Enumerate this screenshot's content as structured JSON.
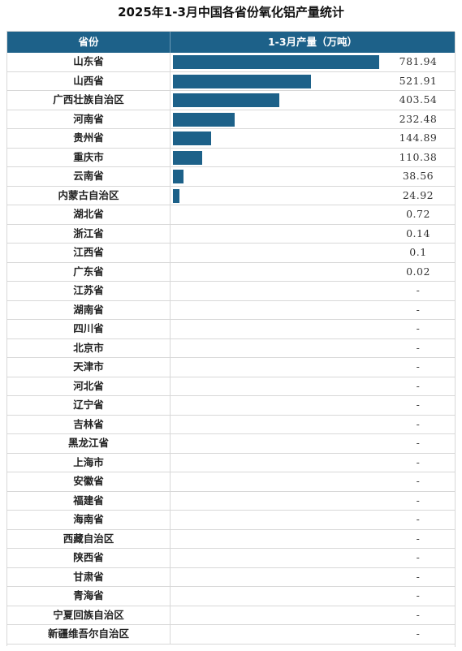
{
  "title": "2025年1-3月中国各省份氧化铝产量统计",
  "header": {
    "col1": "省份",
    "col2": "1-3月产量（万吨）"
  },
  "colors": {
    "bar": "#1d6189",
    "header_bg": "#1d6189"
  },
  "chart_data": {
    "type": "bar",
    "orientation": "horizontal",
    "title": "2025年1-3月中国各省份氧化铝产量统计",
    "value_label": "1-3月产量（万吨）",
    "xlim": [
      0,
      781.94
    ],
    "rows": [
      {
        "province": "山东省",
        "value": 781.94,
        "label": "781.94"
      },
      {
        "province": "山西省",
        "value": 521.91,
        "label": "521.91"
      },
      {
        "province": "广西壮族自治区",
        "value": 403.54,
        "label": "403.54"
      },
      {
        "province": "河南省",
        "value": 232.48,
        "label": "232.48"
      },
      {
        "province": "贵州省",
        "value": 144.89,
        "label": "144.89"
      },
      {
        "province": "重庆市",
        "value": 110.38,
        "label": "110.38"
      },
      {
        "province": "云南省",
        "value": 38.56,
        "label": "38.56"
      },
      {
        "province": "内蒙古自治区",
        "value": 24.92,
        "label": "24.92"
      },
      {
        "province": "湖北省",
        "value": 0.72,
        "label": "0.72"
      },
      {
        "province": "浙江省",
        "value": 0.14,
        "label": "0.14"
      },
      {
        "province": "江西省",
        "value": 0.1,
        "label": "0.1"
      },
      {
        "province": "广东省",
        "value": 0.02,
        "label": "0.02"
      },
      {
        "province": "江苏省",
        "value": null,
        "label": "-"
      },
      {
        "province": "湖南省",
        "value": null,
        "label": "-"
      },
      {
        "province": "四川省",
        "value": null,
        "label": "-"
      },
      {
        "province": "北京市",
        "value": null,
        "label": "-"
      },
      {
        "province": "天津市",
        "value": null,
        "label": "-"
      },
      {
        "province": "河北省",
        "value": null,
        "label": "-"
      },
      {
        "province": "辽宁省",
        "value": null,
        "label": "-"
      },
      {
        "province": "吉林省",
        "value": null,
        "label": "-"
      },
      {
        "province": "黑龙江省",
        "value": null,
        "label": "-"
      },
      {
        "province": "上海市",
        "value": null,
        "label": "-"
      },
      {
        "province": "安徽省",
        "value": null,
        "label": "-"
      },
      {
        "province": "福建省",
        "value": null,
        "label": "-"
      },
      {
        "province": "海南省",
        "value": null,
        "label": "-"
      },
      {
        "province": "西藏自治区",
        "value": null,
        "label": "-"
      },
      {
        "province": "陕西省",
        "value": null,
        "label": "-"
      },
      {
        "province": "甘肃省",
        "value": null,
        "label": "-"
      },
      {
        "province": "青海省",
        "value": null,
        "label": "-"
      },
      {
        "province": "宁夏回族自治区",
        "value": null,
        "label": "-"
      },
      {
        "province": "新疆维吾尔自治区",
        "value": null,
        "label": "-"
      }
    ]
  }
}
